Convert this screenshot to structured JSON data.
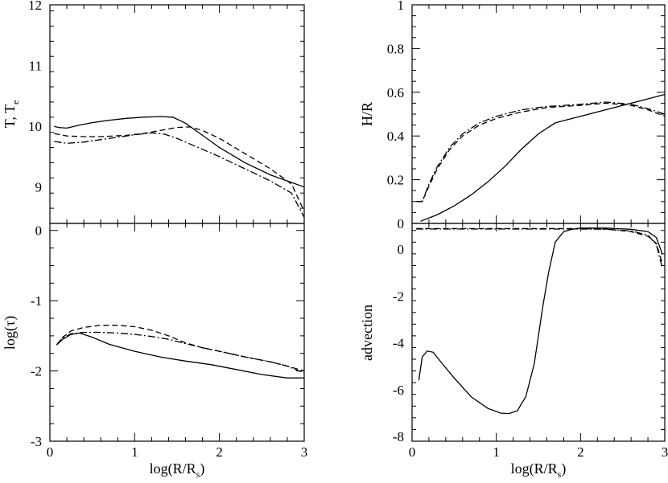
{
  "chart_data": [
    {
      "id": "panel_T",
      "type": "line",
      "ylabel": "T, T",
      "ylabel_sub": "e",
      "xlabel": "",
      "xlim": [
        0,
        3
      ],
      "ylim": [
        8.4,
        12
      ],
      "yticks": [
        9,
        10,
        11,
        12
      ],
      "ytick_labels": [
        "9",
        "10",
        "11",
        "12"
      ],
      "xticks": [
        0,
        1,
        2,
        3
      ],
      "xtick_labels": [],
      "series": [
        {
          "name": "solid",
          "style": "solid",
          "x": [
            0.05,
            0.1,
            0.2,
            0.35,
            0.5,
            0.7,
            0.9,
            1.1,
            1.3,
            1.45,
            1.6,
            1.8,
            2.0,
            2.3,
            2.6,
            3.0
          ],
          "y": [
            10.0,
            9.98,
            9.97,
            10.02,
            10.06,
            10.1,
            10.13,
            10.15,
            10.16,
            10.15,
            10.05,
            9.85,
            9.65,
            9.4,
            9.2,
            9.0
          ]
        },
        {
          "name": "dashed",
          "style": "dashed",
          "x": [
            0.05,
            0.2,
            0.4,
            0.6,
            0.9,
            1.1,
            1.3,
            1.5,
            1.65,
            1.8,
            2.0,
            2.3,
            2.6,
            2.85,
            3.0
          ],
          "y": [
            9.88,
            9.84,
            9.83,
            9.83,
            9.85,
            9.88,
            9.93,
            9.98,
            9.99,
            9.93,
            9.8,
            9.55,
            9.3,
            9.05,
            8.6
          ]
        },
        {
          "name": "dash-dot",
          "style": "dashdot",
          "x": [
            0.05,
            0.2,
            0.4,
            0.6,
            0.8,
            1.0,
            1.2,
            1.35,
            1.5,
            1.7,
            2.0,
            2.3,
            2.6,
            2.85,
            3.0
          ],
          "y": [
            9.75,
            9.72,
            9.74,
            9.78,
            9.82,
            9.86,
            9.89,
            9.87,
            9.8,
            9.68,
            9.5,
            9.3,
            9.1,
            8.9,
            8.5
          ]
        }
      ]
    },
    {
      "id": "panel_tau",
      "type": "line",
      "ylabel": "log(τ)",
      "xlabel": "log(R/R",
      "xlabel_sub": "s",
      "xlabel_close": ")",
      "xlim": [
        0,
        3
      ],
      "ylim": [
        -3,
        0.1
      ],
      "yticks": [
        -3,
        -2,
        -1,
        0
      ],
      "ytick_labels": [
        "-3",
        "-2",
        "-1",
        "0"
      ],
      "xticks": [
        0,
        1,
        2,
        3
      ],
      "xtick_labels": [
        "0",
        "1",
        "2",
        "3"
      ],
      "series": [
        {
          "name": "solid",
          "style": "solid",
          "x": [
            0.08,
            0.15,
            0.25,
            0.35,
            0.5,
            0.7,
            1.0,
            1.3,
            1.6,
            1.9,
            2.2,
            2.5,
            2.8,
            3.0
          ],
          "y": [
            -1.63,
            -1.55,
            -1.48,
            -1.46,
            -1.52,
            -1.62,
            -1.72,
            -1.8,
            -1.86,
            -1.91,
            -1.98,
            -2.05,
            -2.1,
            -2.1
          ]
        },
        {
          "name": "dashed",
          "style": "dashed",
          "x": [
            0.08,
            0.15,
            0.25,
            0.4,
            0.6,
            0.8,
            1.0,
            1.2,
            1.4,
            1.6,
            1.8,
            2.0,
            2.3,
            2.6,
            2.8,
            3.0
          ],
          "y": [
            -1.63,
            -1.52,
            -1.43,
            -1.38,
            -1.35,
            -1.35,
            -1.37,
            -1.42,
            -1.5,
            -1.6,
            -1.67,
            -1.72,
            -1.8,
            -1.87,
            -1.93,
            -2.0
          ]
        },
        {
          "name": "dash-dot",
          "style": "dashdot",
          "x": [
            0.08,
            0.15,
            0.25,
            0.4,
            0.6,
            0.8,
            1.0,
            1.2,
            1.4,
            1.6,
            1.8,
            2.0,
            2.3,
            2.6,
            2.8,
            3.0
          ],
          "y": [
            -1.63,
            -1.53,
            -1.47,
            -1.45,
            -1.45,
            -1.46,
            -1.48,
            -1.51,
            -1.55,
            -1.61,
            -1.67,
            -1.72,
            -1.8,
            -1.87,
            -1.93,
            -2.03
          ]
        }
      ]
    },
    {
      "id": "panel_HR",
      "type": "line",
      "ylabel": "H/R",
      "xlabel": "",
      "xlim": [
        0,
        3
      ],
      "ylim": [
        0,
        1
      ],
      "yticks": [
        0,
        0.2,
        0.4,
        0.6,
        0.8,
        1
      ],
      "ytick_labels": [
        "0",
        "0.2",
        "0.4",
        "0.6",
        "0.8",
        "1"
      ],
      "xticks": [
        0,
        1,
        2,
        3
      ],
      "xtick_labels": [],
      "series": [
        {
          "name": "solid",
          "style": "solid",
          "x": [
            0.1,
            0.3,
            0.5,
            0.7,
            0.9,
            1.1,
            1.3,
            1.5,
            1.7,
            1.9,
            2.2,
            2.5,
            2.8,
            3.0
          ],
          "y": [
            0.01,
            0.04,
            0.08,
            0.13,
            0.19,
            0.26,
            0.34,
            0.41,
            0.46,
            0.48,
            0.51,
            0.54,
            0.57,
            0.59
          ]
        },
        {
          "name": "dashed",
          "style": "dashed",
          "x": [
            0.05,
            0.12,
            0.2,
            0.3,
            0.45,
            0.6,
            0.8,
            1.0,
            1.3,
            1.6,
            2.0,
            2.3,
            2.6,
            2.8,
            3.0
          ],
          "y": [
            0.1,
            0.1,
            0.17,
            0.25,
            0.34,
            0.4,
            0.45,
            0.48,
            0.51,
            0.53,
            0.54,
            0.55,
            0.54,
            0.52,
            0.49
          ]
        },
        {
          "name": "dash-dot",
          "style": "dashdot",
          "x": [
            0.05,
            0.12,
            0.2,
            0.3,
            0.45,
            0.6,
            0.8,
            1.0,
            1.3,
            1.6,
            2.0,
            2.3,
            2.6,
            2.8,
            3.0
          ],
          "y": [
            0.1,
            0.1,
            0.18,
            0.26,
            0.35,
            0.41,
            0.46,
            0.49,
            0.52,
            0.535,
            0.545,
            0.555,
            0.545,
            0.525,
            0.5
          ]
        }
      ]
    },
    {
      "id": "panel_adv",
      "type": "line",
      "ylabel": "advection",
      "xlabel": "log(R/R",
      "xlabel_sub": "s",
      "xlabel_close": ")",
      "xlim": [
        0,
        3
      ],
      "ylim": [
        -8.2,
        1.1
      ],
      "yticks": [
        -8,
        -6,
        -4,
        -2,
        0
      ],
      "ytick_labels": [
        "-8",
        "-6",
        "-4",
        "-2",
        "0"
      ],
      "xticks": [
        0,
        1,
        2,
        3
      ],
      "xtick_labels": [
        "0",
        "1",
        "2",
        "3"
      ],
      "series": [
        {
          "name": "solid",
          "style": "solid",
          "x": [
            0.08,
            0.12,
            0.18,
            0.25,
            0.35,
            0.5,
            0.7,
            0.9,
            1.05,
            1.15,
            1.25,
            1.35,
            1.45,
            1.55,
            1.62,
            1.7,
            1.8,
            1.9,
            2.0,
            2.3,
            2.6,
            2.8,
            2.9,
            2.97
          ],
          "y": [
            -5.6,
            -4.6,
            -4.35,
            -4.4,
            -4.85,
            -5.5,
            -6.3,
            -6.8,
            -7.0,
            -7.02,
            -6.9,
            -6.3,
            -4.9,
            -2.5,
            -1.0,
            0.3,
            0.75,
            0.85,
            0.9,
            0.9,
            0.85,
            0.75,
            0.5,
            -0.2
          ]
        },
        {
          "name": "dashed",
          "style": "dashed",
          "x": [
            0.05,
            0.5,
            1.0,
            1.5,
            2.0,
            2.3,
            2.6,
            2.8,
            2.9,
            2.97
          ],
          "y": [
            0.88,
            0.88,
            0.88,
            0.88,
            0.88,
            0.86,
            0.75,
            0.55,
            0.25,
            -0.6
          ]
        },
        {
          "name": "dash-dot",
          "style": "dashdot",
          "x": [
            0.05,
            0.5,
            1.0,
            1.5,
            2.0,
            2.3,
            2.6,
            2.8,
            2.9,
            2.97
          ],
          "y": [
            0.86,
            0.86,
            0.86,
            0.86,
            0.86,
            0.85,
            0.78,
            0.6,
            0.2,
            -0.8
          ]
        }
      ]
    }
  ]
}
